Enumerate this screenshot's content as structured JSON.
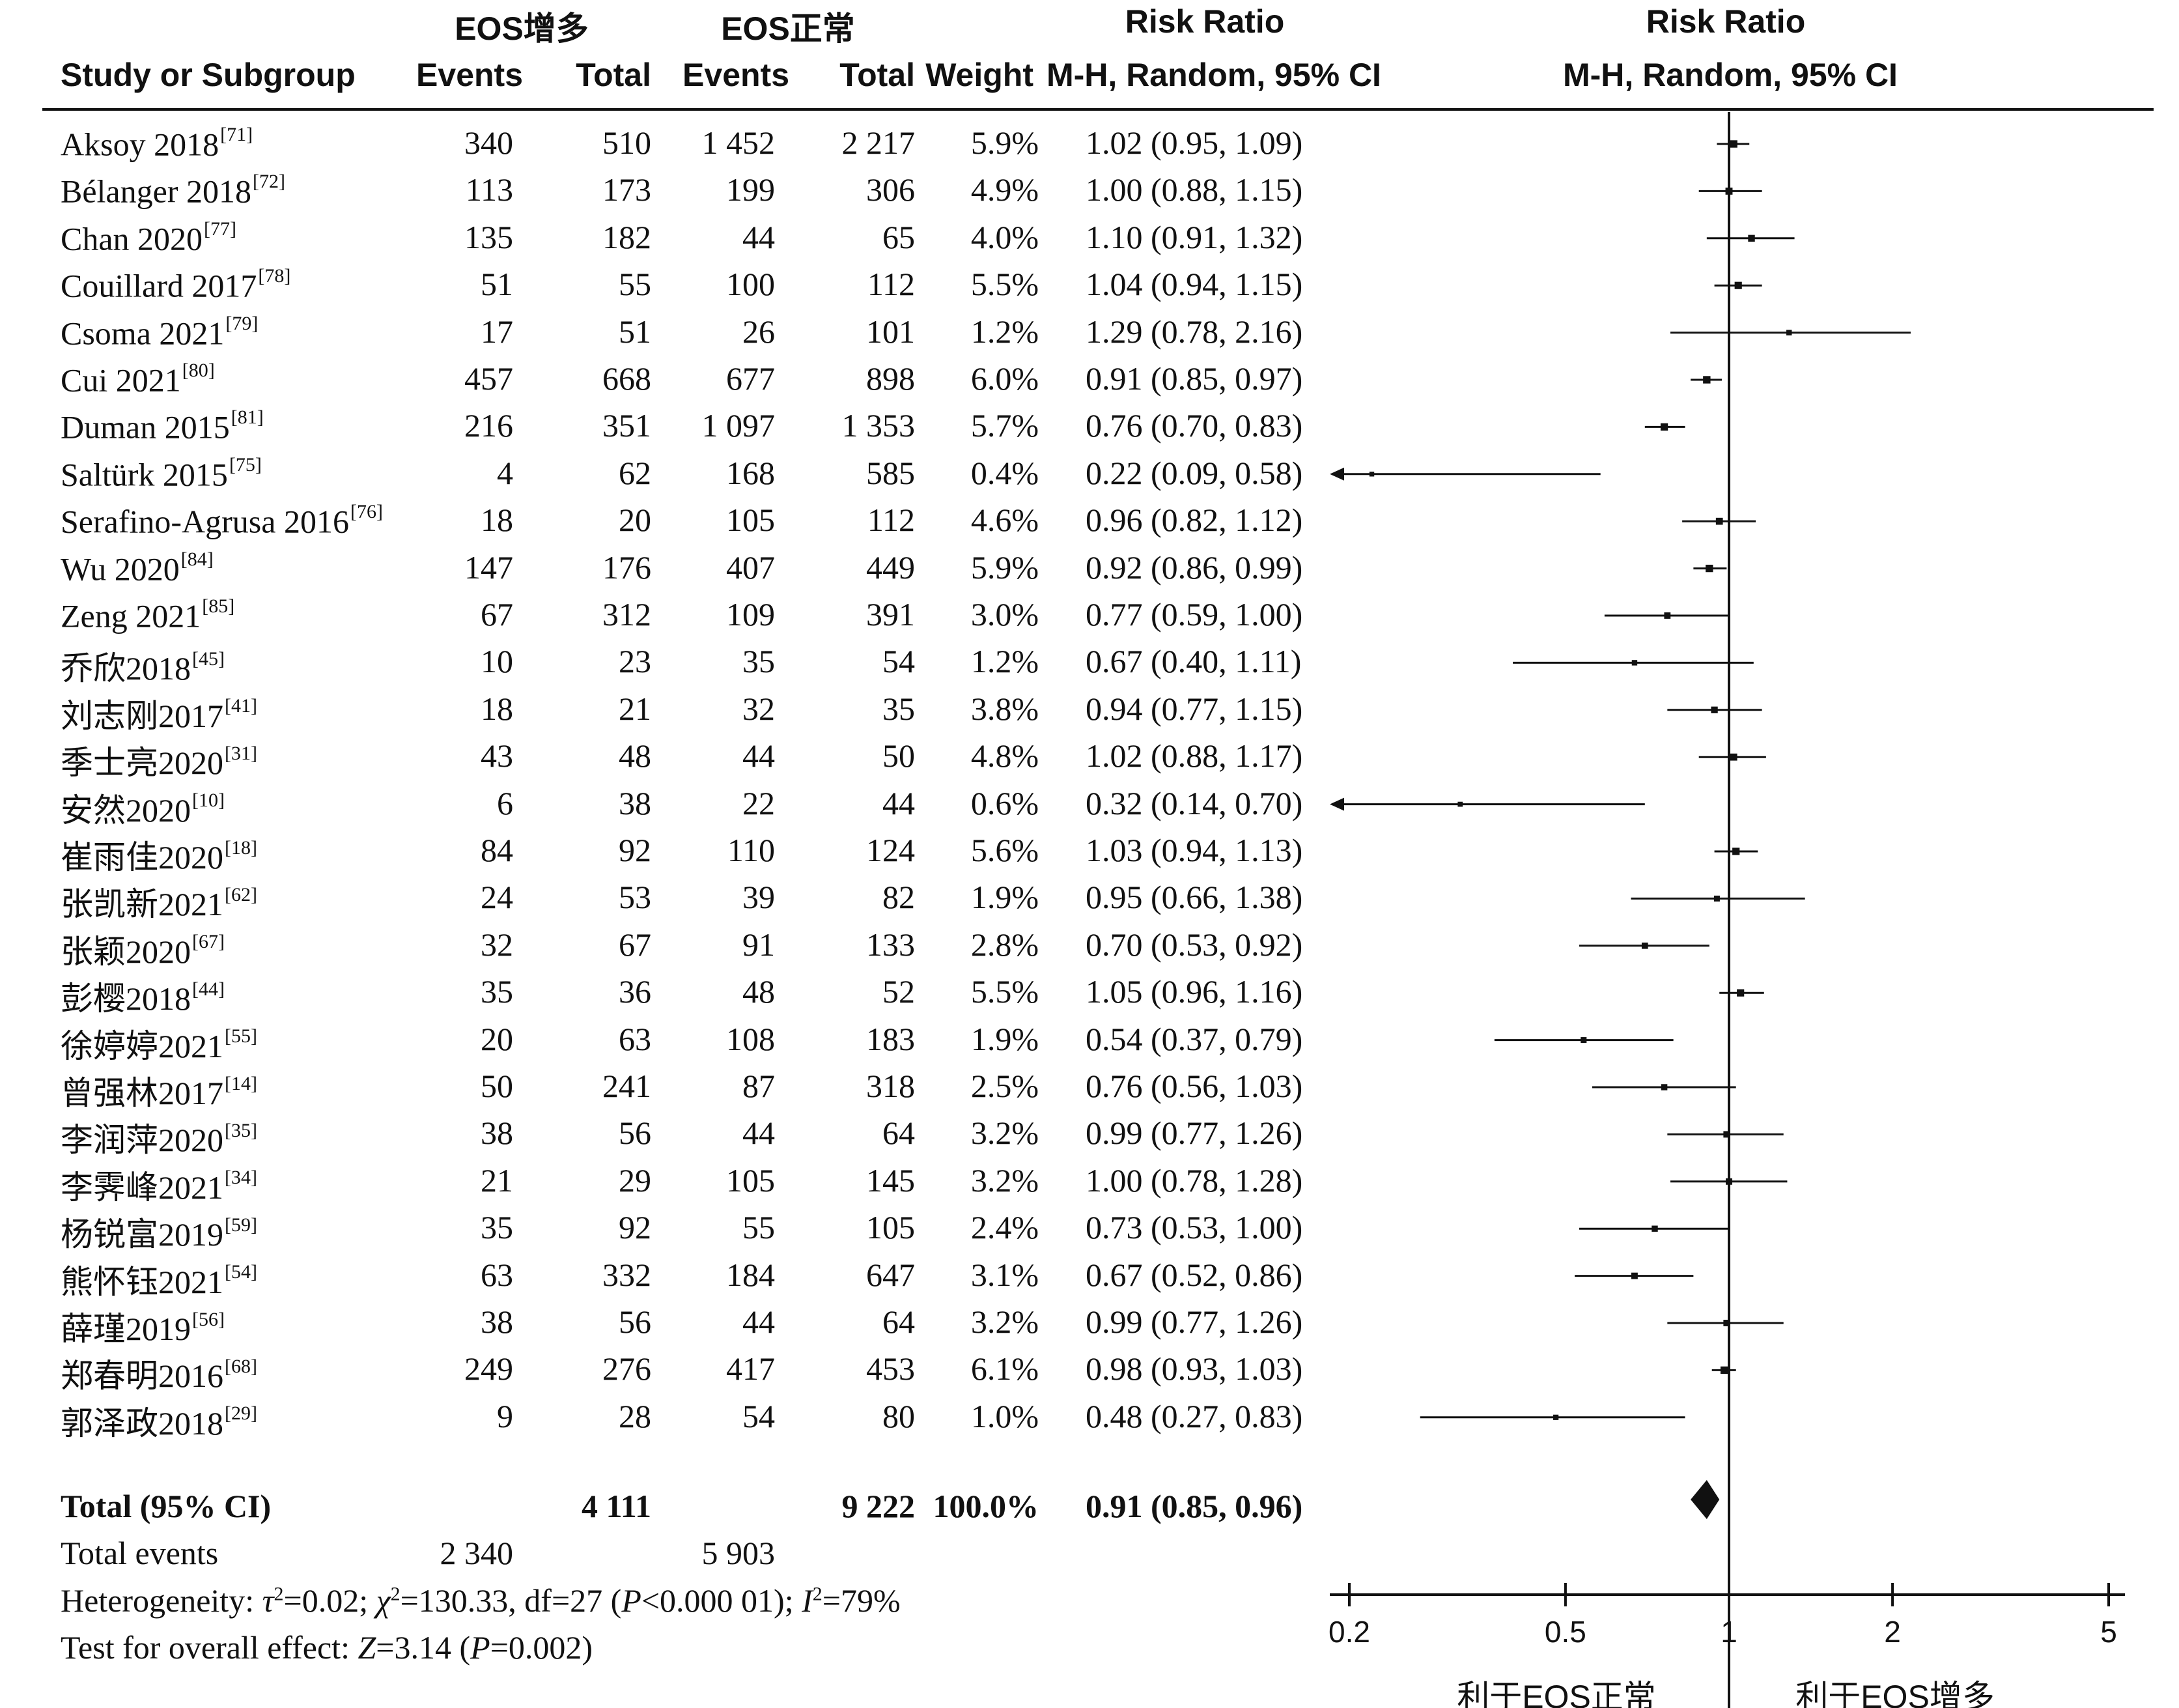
{
  "headers": {
    "group1": "EOS增多",
    "group2": "EOS正常",
    "rr_top": "Risk Ratio",
    "plot_top": "Risk Ratio",
    "study": "Study or Subgroup",
    "events1": "Events",
    "total1": "Total",
    "events2": "Events",
    "total2": "Total",
    "weight": "Weight",
    "method": "M-H, Random, 95% CI",
    "plot_method": "M-H, Random, 95% CI"
  },
  "studies": [
    {
      "name": "Aksoy 2018",
      "ref": "[71]",
      "e1": "340",
      "t1": "510",
      "e2": "1 452",
      "t2": "2 217",
      "weight": "5.9%",
      "ci_text": "1.02 (0.95, 1.09)",
      "rr": 1.02,
      "lo": 0.95,
      "hi": 1.09
    },
    {
      "name": "Bélanger 2018",
      "ref": "[72]",
      "e1": "113",
      "t1": "173",
      "e2": "199",
      "t2": "306",
      "weight": "4.9%",
      "ci_text": "1.00 (0.88, 1.15)",
      "rr": 1.0,
      "lo": 0.88,
      "hi": 1.15
    },
    {
      "name": "Chan 2020",
      "ref": "[77]",
      "e1": "135",
      "t1": "182",
      "e2": "44",
      "t2": "65",
      "weight": "4.0%",
      "ci_text": "1.10 (0.91, 1.32)",
      "rr": 1.1,
      "lo": 0.91,
      "hi": 1.32
    },
    {
      "name": "Couillard 2017",
      "ref": "[78]",
      "e1": "51",
      "t1": "55",
      "e2": "100",
      "t2": "112",
      "weight": "5.5%",
      "ci_text": "1.04 (0.94, 1.15)",
      "rr": 1.04,
      "lo": 0.94,
      "hi": 1.15
    },
    {
      "name": "Csoma 2021",
      "ref": "[79]",
      "e1": "17",
      "t1": "51",
      "e2": "26",
      "t2": "101",
      "weight": "1.2%",
      "ci_text": "1.29 (0.78, 2.16)",
      "rr": 1.29,
      "lo": 0.78,
      "hi": 2.16
    },
    {
      "name": "Cui 2021",
      "ref": "[80]",
      "e1": "457",
      "t1": "668",
      "e2": "677",
      "t2": "898",
      "weight": "6.0%",
      "ci_text": "0.91 (0.85, 0.97)",
      "rr": 0.91,
      "lo": 0.85,
      "hi": 0.97
    },
    {
      "name": "Duman 2015",
      "ref": "[81]",
      "e1": "216",
      "t1": "351",
      "e2": "1 097",
      "t2": "1 353",
      "weight": "5.7%",
      "ci_text": "0.76 (0.70, 0.83)",
      "rr": 0.76,
      "lo": 0.7,
      "hi": 0.83
    },
    {
      "name": "Saltürk 2015",
      "ref": "[75]",
      "e1": "4",
      "t1": "62",
      "e2": "168",
      "t2": "585",
      "weight": "0.4%",
      "ci_text": "0.22 (0.09, 0.58)",
      "rr": 0.22,
      "lo": 0.09,
      "hi": 0.58
    },
    {
      "name": "Serafino-Agrusa 2016",
      "ref": "[76]",
      "e1": "18",
      "t1": "20",
      "e2": "105",
      "t2": "112",
      "weight": "4.6%",
      "ci_text": "0.96 (0.82, 1.12)",
      "rr": 0.96,
      "lo": 0.82,
      "hi": 1.12
    },
    {
      "name": "Wu 2020",
      "ref": "[84]",
      "e1": "147",
      "t1": "176",
      "e2": "407",
      "t2": "449",
      "weight": "5.9%",
      "ci_text": "0.92 (0.86, 0.99)",
      "rr": 0.92,
      "lo": 0.86,
      "hi": 0.99
    },
    {
      "name": "Zeng 2021",
      "ref": "[85]",
      "e1": "67",
      "t1": "312",
      "e2": "109",
      "t2": "391",
      "weight": "3.0%",
      "ci_text": "0.77 (0.59, 1.00)",
      "rr": 0.77,
      "lo": 0.59,
      "hi": 1.0
    },
    {
      "name": "乔欣2018",
      "ref": "[45]",
      "e1": "10",
      "t1": "23",
      "e2": "35",
      "t2": "54",
      "weight": "1.2%",
      "ci_text": "0.67 (0.40, 1.11)",
      "rr": 0.67,
      "lo": 0.4,
      "hi": 1.11
    },
    {
      "name": "刘志刚2017",
      "ref": "[41]",
      "e1": "18",
      "t1": "21",
      "e2": "32",
      "t2": "35",
      "weight": "3.8%",
      "ci_text": "0.94 (0.77, 1.15)",
      "rr": 0.94,
      "lo": 0.77,
      "hi": 1.15
    },
    {
      "name": "季士亮2020",
      "ref": "[31]",
      "e1": "43",
      "t1": "48",
      "e2": "44",
      "t2": "50",
      "weight": "4.8%",
      "ci_text": "1.02 (0.88, 1.17)",
      "rr": 1.02,
      "lo": 0.88,
      "hi": 1.17
    },
    {
      "name": "安然2020",
      "ref": "[10]",
      "e1": "6",
      "t1": "38",
      "e2": "22",
      "t2": "44",
      "weight": "0.6%",
      "ci_text": "0.32 (0.14, 0.70)",
      "rr": 0.32,
      "lo": 0.14,
      "hi": 0.7
    },
    {
      "name": "崔雨佳2020",
      "ref": "[18]",
      "e1": "84",
      "t1": "92",
      "e2": "110",
      "t2": "124",
      "weight": "5.6%",
      "ci_text": "1.03 (0.94, 1.13)",
      "rr": 1.03,
      "lo": 0.94,
      "hi": 1.13
    },
    {
      "name": "张凯新2021",
      "ref": "[62]",
      "e1": "24",
      "t1": "53",
      "e2": "39",
      "t2": "82",
      "weight": "1.9%",
      "ci_text": "0.95 (0.66, 1.38)",
      "rr": 0.95,
      "lo": 0.66,
      "hi": 1.38
    },
    {
      "name": "张颖2020",
      "ref": "[67]",
      "e1": "32",
      "t1": "67",
      "e2": "91",
      "t2": "133",
      "weight": "2.8%",
      "ci_text": "0.70 (0.53, 0.92)",
      "rr": 0.7,
      "lo": 0.53,
      "hi": 0.92
    },
    {
      "name": "彭樱2018",
      "ref": "[44]",
      "e1": "35",
      "t1": "36",
      "e2": "48",
      "t2": "52",
      "weight": "5.5%",
      "ci_text": "1.05 (0.96, 1.16)",
      "rr": 1.05,
      "lo": 0.96,
      "hi": 1.16
    },
    {
      "name": "徐婷婷2021",
      "ref": "[55]",
      "e1": "20",
      "t1": "63",
      "e2": "108",
      "t2": "183",
      "weight": "1.9%",
      "ci_text": "0.54 (0.37, 0.79)",
      "rr": 0.54,
      "lo": 0.37,
      "hi": 0.79
    },
    {
      "name": "曾强林2017",
      "ref": "[14]",
      "e1": "50",
      "t1": "241",
      "e2": "87",
      "t2": "318",
      "weight": "2.5%",
      "ci_text": "0.76 (0.56, 1.03)",
      "rr": 0.76,
      "lo": 0.56,
      "hi": 1.03
    },
    {
      "name": "李润萍2020",
      "ref": "[35]",
      "e1": "38",
      "t1": "56",
      "e2": "44",
      "t2": "64",
      "weight": "3.2%",
      "ci_text": "0.99 (0.77, 1.26)",
      "rr": 0.99,
      "lo": 0.77,
      "hi": 1.26
    },
    {
      "name": "李霁峰2021",
      "ref": "[34]",
      "e1": "21",
      "t1": "29",
      "e2": "105",
      "t2": "145",
      "weight": "3.2%",
      "ci_text": "1.00 (0.78, 1.28)",
      "rr": 1.0,
      "lo": 0.78,
      "hi": 1.28
    },
    {
      "name": "杨锐富2019",
      "ref": "[59]",
      "e1": "35",
      "t1": "92",
      "e2": "55",
      "t2": "105",
      "weight": "2.4%",
      "ci_text": "0.73 (0.53, 1.00)",
      "rr": 0.73,
      "lo": 0.53,
      "hi": 1.0
    },
    {
      "name": "熊怀钰2021",
      "ref": "[54]",
      "e1": "63",
      "t1": "332",
      "e2": "184",
      "t2": "647",
      "weight": "3.1%",
      "ci_text": "0.67 (0.52, 0.86)",
      "rr": 0.67,
      "lo": 0.52,
      "hi": 0.86
    },
    {
      "name": "薛瑾2019",
      "ref": "[56]",
      "e1": "38",
      "t1": "56",
      "e2": "44",
      "t2": "64",
      "weight": "3.2%",
      "ci_text": "0.99 (0.77, 1.26)",
      "rr": 0.99,
      "lo": 0.77,
      "hi": 1.26
    },
    {
      "name": "郑春明2016",
      "ref": "[68]",
      "e1": "249",
      "t1": "276",
      "e2": "417",
      "t2": "453",
      "weight": "6.1%",
      "ci_text": "0.98 (0.93, 1.03)",
      "rr": 0.98,
      "lo": 0.93,
      "hi": 1.03
    },
    {
      "name": "郭泽政2018",
      "ref": "[29]",
      "e1": "9",
      "t1": "28",
      "e2": "54",
      "t2": "80",
      "weight": "1.0%",
      "ci_text": "0.48 (0.27, 0.83)",
      "rr": 0.48,
      "lo": 0.27,
      "hi": 0.83
    }
  ],
  "total": {
    "label": "Total (95% CI)",
    "t1": "4 111",
    "t2": "9 222",
    "weight": "100.0%",
    "ci_text": "0.91 (0.85, 0.96)",
    "rr": 0.91,
    "lo": 0.85,
    "hi": 0.96
  },
  "total_events": {
    "label": "Total events",
    "e1": "2 340",
    "e2": "5 903"
  },
  "footer": {
    "het_prefix": "Heterogeneity: ",
    "het_tau": "τ",
    "het_tau_val": "=0.02; ",
    "het_chi": "χ",
    "het_chi_val": "=130.33, df=27 (",
    "het_p": "P",
    "het_p_val": "<0.000 01); ",
    "het_i": "I",
    "het_i_val": "=79%",
    "sq": "2",
    "test_prefix": "Test for overall effect: ",
    "test_z": "Z",
    "test_z_val": "=3.14 (",
    "test_p": "P",
    "test_p_val": "=0.002)"
  },
  "axis": {
    "ticks": [
      {
        "value": 0.2,
        "label": "0.2"
      },
      {
        "value": 0.5,
        "label": "0.5"
      },
      {
        "value": 1,
        "label": "1"
      },
      {
        "value": 2,
        "label": "2"
      },
      {
        "value": 5,
        "label": "5"
      }
    ],
    "favor_left": "利于EOS正常",
    "favor_right": "利于EOS增多"
  },
  "chart_data": {
    "type": "forest",
    "title": "",
    "xlabel": "Risk Ratio M-H, Random, 95% CI",
    "x_scale": "log",
    "xlim": [
      0.2,
      5
    ],
    "reference_line": 1,
    "favor_left": "利于EOS正常",
    "favor_right": "利于EOS增多",
    "categories": [
      "Aksoy 2018",
      "Bélanger 2018",
      "Chan 2020",
      "Couillard 2017",
      "Csoma 2021",
      "Cui 2021",
      "Duman 2015",
      "Saltürk 2015",
      "Serafino-Agrusa 2016",
      "Wu 2020",
      "Zeng 2021",
      "乔欣2018",
      "刘志刚2017",
      "季士亮2020",
      "安然2020",
      "崔雨佳2020",
      "张凯新2021",
      "张颖2020",
      "彭樱2018",
      "徐婷婷2021",
      "曾强林2017",
      "李润萍2020",
      "李霁峰2021",
      "杨锐富2019",
      "熊怀钰2021",
      "薛瑾2019",
      "郑春明2016",
      "郭泽政2018"
    ],
    "rr": [
      1.02,
      1.0,
      1.1,
      1.04,
      1.29,
      0.91,
      0.76,
      0.22,
      0.96,
      0.92,
      0.77,
      0.67,
      0.94,
      1.02,
      0.32,
      1.03,
      0.95,
      0.7,
      1.05,
      0.54,
      0.76,
      0.99,
      1.0,
      0.73,
      0.67,
      0.99,
      0.98,
      0.48
    ],
    "ci_low": [
      0.95,
      0.88,
      0.91,
      0.94,
      0.78,
      0.85,
      0.7,
      0.09,
      0.82,
      0.86,
      0.59,
      0.4,
      0.77,
      0.88,
      0.14,
      0.94,
      0.66,
      0.53,
      0.96,
      0.37,
      0.56,
      0.77,
      0.78,
      0.53,
      0.52,
      0.77,
      0.93,
      0.27
    ],
    "ci_high": [
      1.09,
      1.15,
      1.32,
      1.15,
      2.16,
      0.97,
      0.83,
      0.58,
      1.12,
      0.99,
      1.0,
      1.11,
      1.15,
      1.17,
      0.7,
      1.13,
      1.38,
      0.92,
      1.16,
      0.79,
      1.03,
      1.26,
      1.28,
      1.0,
      0.86,
      1.26,
      1.03,
      0.83
    ],
    "weights": [
      5.9,
      4.9,
      4.0,
      5.5,
      1.2,
      6.0,
      5.7,
      0.4,
      4.6,
      5.9,
      3.0,
      1.2,
      3.8,
      4.8,
      0.6,
      5.6,
      1.9,
      2.8,
      5.5,
      1.9,
      2.5,
      3.2,
      3.2,
      2.4,
      3.1,
      3.2,
      6.1,
      1.0
    ],
    "pooled": {
      "rr": 0.91,
      "ci_low": 0.85,
      "ci_high": 0.96,
      "weight": 100.0
    }
  }
}
